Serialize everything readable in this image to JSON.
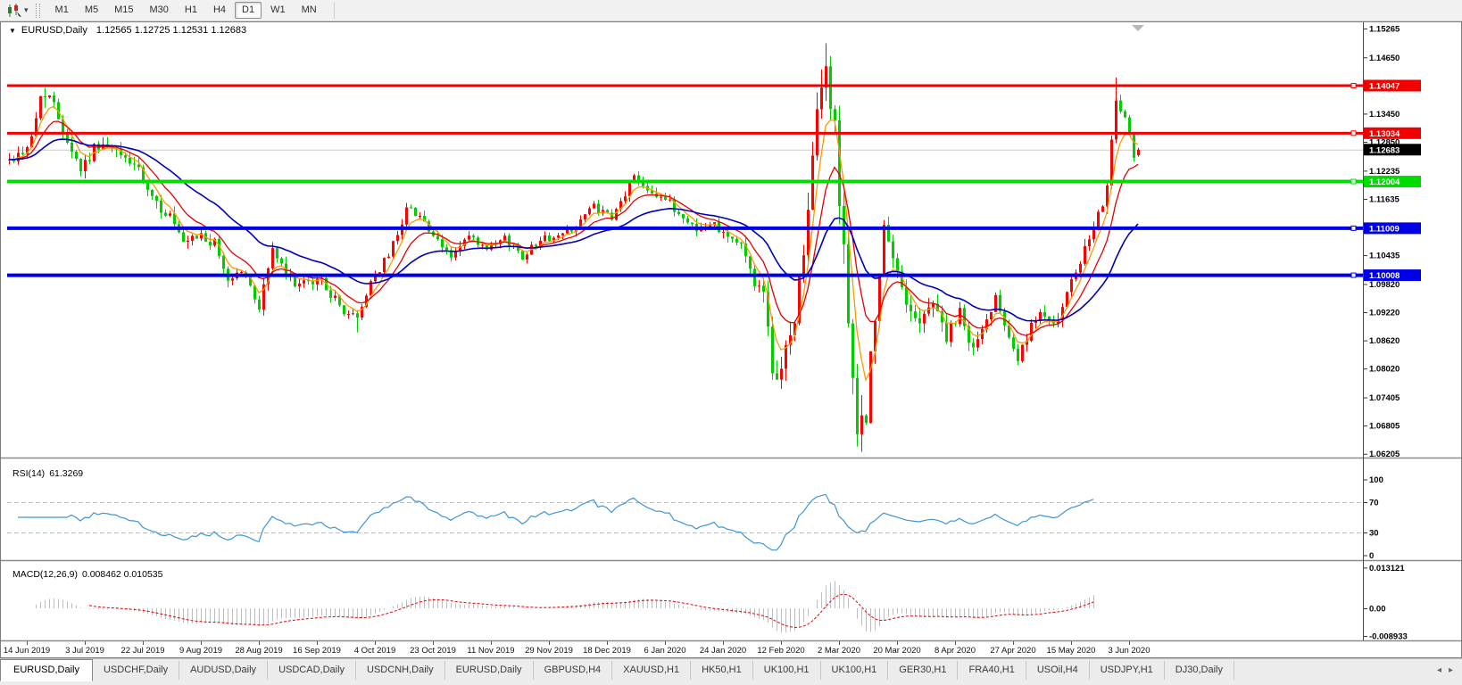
{
  "toolbar": {
    "chart_icon": "candlestick-chart-icon",
    "dropdown_caret": "▾",
    "timeframes": [
      "M1",
      "M5",
      "M15",
      "M30",
      "H1",
      "H4",
      "D1",
      "W1",
      "MN"
    ],
    "active_timeframe": "D1"
  },
  "chart": {
    "symbol_label": "EURUSD,Daily",
    "dropdown_glyph": "▼",
    "ohlc_text": "1.12565 1.12725 1.12531 1.12683",
    "open": "1.12565",
    "high": "1.12725",
    "low": "1.12531",
    "close": "1.12683"
  },
  "price_axis": {
    "ticks": [
      "1.15265",
      "1.14650",
      "1.13450",
      "1.12850",
      "1.12235",
      "1.11635",
      "1.10435",
      "1.09820",
      "1.09220",
      "1.08620",
      "1.08020",
      "1.07405",
      "1.06805",
      "1.06205"
    ],
    "levels": [
      {
        "label": "1.14047",
        "price": 1.14047,
        "color": "#f20000",
        "thickness": 3,
        "type": "resistance"
      },
      {
        "label": "1.13034",
        "price": 1.13034,
        "color": "#f20000",
        "thickness": 3,
        "type": "resistance"
      },
      {
        "label": "1.12004",
        "price": 1.12004,
        "color": "#00dc00",
        "thickness": 4,
        "type": "support"
      },
      {
        "label": "1.11009",
        "price": 1.11009,
        "color": "#0000e6",
        "thickness": 4,
        "type": "support"
      },
      {
        "label": "1.10008",
        "price": 1.10008,
        "color": "#0000e6",
        "thickness": 4,
        "type": "support"
      }
    ],
    "current": {
      "label": "1.12683",
      "price": 1.12683,
      "bg": "#000000",
      "line_color": "#c8c8c8"
    }
  },
  "date_axis": {
    "labels": [
      "14 Jun 2019",
      "3 Jul 2019",
      "22 Jul 2019",
      "9 Aug 2019",
      "28 Aug 2019",
      "16 Sep 2019",
      "4 Oct 2019",
      "23 Oct 2019",
      "11 Nov 2019",
      "29 Nov 2019",
      "18 Dec 2019",
      "6 Jan 2020",
      "24 Jan 2020",
      "12 Feb 2020",
      "2 Mar 2020",
      "20 Mar 2020",
      "8 Apr 2020",
      "27 Apr 2020",
      "15 May 2020",
      "3 Jun 2020"
    ],
    "tick_indices": [
      4,
      17,
      30,
      43,
      56,
      69,
      82,
      95,
      108,
      121,
      134,
      147,
      160,
      173,
      186,
      199,
      212,
      225,
      238,
      251
    ]
  },
  "rsi_panel": {
    "title": "RSI(14)",
    "value": "61.3269",
    "line_color": "#3d96d6",
    "guides": [
      70,
      30
    ],
    "axis_labels": [
      {
        "text": "100",
        "value": 100
      },
      {
        "text": "70",
        "value": 70
      },
      {
        "text": "30",
        "value": 30
      },
      {
        "text": "0",
        "value": 0
      }
    ]
  },
  "macd_panel": {
    "title": "MACD(12,26,9)",
    "values_text": "0.008462 0.010535",
    "macd_value": "0.008462",
    "signal_value": "0.010535",
    "histogram_color": "#bdbdbd",
    "signal_color": "#e60000",
    "axis_labels": [
      {
        "text": "0.013121",
        "value": 0.013121
      },
      {
        "text": "0.00",
        "value": 0
      },
      {
        "text": "-0.008933",
        "value": -0.008933
      }
    ]
  },
  "tabs": {
    "items": [
      "EURUSD,Daily",
      "USDCHF,Daily",
      "AUDUSD,Daily",
      "USDCAD,Daily",
      "USDCNH,Daily",
      "EURUSD,Daily",
      "GBPUSD,H4",
      "XAUUSD,H1",
      "HK50,H1",
      "UK100,H1",
      "UK100,H1",
      "GER30,H1",
      "FRA40,H1",
      "USOil,H4",
      "USDJPY,H1",
      "DJ30,Daily"
    ],
    "active_index": 0,
    "scroll_left": "◂",
    "scroll_right": "▸"
  },
  "chart_data": {
    "type": "candlestick",
    "symbol": "EURUSD",
    "timeframe": "Daily",
    "bar_count": 254,
    "bull_color": "#ff0000",
    "bear_color": "#00cc00",
    "visible_price_range": [
      1.059,
      1.154
    ],
    "seed": 42,
    "close_waypoints": [
      [
        0,
        1.1245
      ],
      [
        3,
        1.1265
      ],
      [
        5,
        1.1292
      ],
      [
        7,
        1.138
      ],
      [
        9,
        1.1383
      ],
      [
        11,
        1.1338
      ],
      [
        13,
        1.129
      ],
      [
        16,
        1.1228
      ],
      [
        20,
        1.1282
      ],
      [
        24,
        1.126
      ],
      [
        28,
        1.1238
      ],
      [
        30,
        1.1196
      ],
      [
        32,
        1.1158
      ],
      [
        36,
        1.1128
      ],
      [
        39,
        1.1062
      ],
      [
        43,
        1.1085
      ],
      [
        46,
        1.1065
      ],
      [
        49,
        1.0992
      ],
      [
        52,
        1.1012
      ],
      [
        56,
        1.0935
      ],
      [
        59,
        1.1058
      ],
      [
        62,
        1.0998
      ],
      [
        66,
        1.0978
      ],
      [
        70,
        1.0992
      ],
      [
        74,
        1.0932
      ],
      [
        78,
        1.0907
      ],
      [
        81,
        1.0988
      ],
      [
        85,
        1.1042
      ],
      [
        89,
        1.1142
      ],
      [
        92,
        1.1132
      ],
      [
        95,
        1.1078
      ],
      [
        99,
        1.1042
      ],
      [
        103,
        1.1082
      ],
      [
        107,
        1.1052
      ],
      [
        111,
        1.1078
      ],
      [
        115,
        1.1042
      ],
      [
        119,
        1.1078
      ],
      [
        123,
        1.1082
      ],
      [
        127,
        1.1108
      ],
      [
        131,
        1.1148
      ],
      [
        135,
        1.1118
      ],
      [
        140,
        1.1212
      ],
      [
        143,
        1.1188
      ],
      [
        147,
        1.1162
      ],
      [
        151,
        1.1122
      ],
      [
        155,
        1.1098
      ],
      [
        158,
        1.1112
      ],
      [
        161,
        1.1088
      ],
      [
        164,
        1.1062
      ],
      [
        167,
        1.0992
      ],
      [
        169,
        1.0952
      ],
      [
        171,
        1.0792
      ],
      [
        173,
        1.0802
      ],
      [
        176,
        1.0912
      ],
      [
        179,
        1.1132
      ],
      [
        181,
        1.1342
      ],
      [
        183,
        1.1446
      ],
      [
        185,
        1.1292
      ],
      [
        187,
        1.1072
      ],
      [
        189,
        1.0742
      ],
      [
        190,
        1.0662
      ],
      [
        192,
        1.0722
      ],
      [
        194,
        1.0902
      ],
      [
        196,
        1.1092
      ],
      [
        198,
        1.1032
      ],
      [
        201,
        1.0952
      ],
      [
        204,
        1.0892
      ],
      [
        207,
        1.0952
      ],
      [
        210,
        1.0867
      ],
      [
        213,
        1.0917
      ],
      [
        216,
        1.0842
      ],
      [
        219,
        1.0902
      ],
      [
        221,
        1.0962
      ],
      [
        223,
        1.0907
      ],
      [
        226,
        1.0822
      ],
      [
        229,
        1.0887
      ],
      [
        232,
        1.0922
      ],
      [
        235,
        1.0902
      ],
      [
        238,
        1.0982
      ],
      [
        241,
        1.1052
      ],
      [
        244,
        1.112
      ],
      [
        246,
        1.1205
      ],
      [
        248,
        1.1373
      ],
      [
        250,
        1.1335
      ],
      [
        251,
        1.1296
      ],
      [
        252,
        1.1243
      ],
      [
        253,
        1.1268
      ]
    ],
    "volatility_waypoints": [
      [
        0,
        0.0028
      ],
      [
        30,
        0.0032
      ],
      [
        60,
        0.0028
      ],
      [
        90,
        0.0022
      ],
      [
        120,
        0.0018
      ],
      [
        140,
        0.0022
      ],
      [
        163,
        0.0026
      ],
      [
        170,
        0.0045
      ],
      [
        178,
        0.0065
      ],
      [
        184,
        0.0085
      ],
      [
        190,
        0.0095
      ],
      [
        194,
        0.0065
      ],
      [
        198,
        0.0045
      ],
      [
        208,
        0.0038
      ],
      [
        222,
        0.0032
      ],
      [
        238,
        0.0028
      ],
      [
        246,
        0.0038
      ],
      [
        251,
        0.0025
      ],
      [
        253,
        0.0015
      ]
    ],
    "overrides": [
      {
        "i": 8,
        "h": 1.14,
        "c": 1.138
      },
      {
        "i": 78,
        "l": 1.0879
      },
      {
        "i": 171,
        "l": 1.0778,
        "c": 1.0792
      },
      {
        "i": 183,
        "h": 1.1495,
        "c": 1.1446
      },
      {
        "i": 190,
        "l": 1.0636,
        "c": 1.0662
      },
      {
        "i": 248,
        "h": 1.1422,
        "c": 1.1373
      },
      {
        "i": 253,
        "o": 1.12565,
        "h": 1.12725,
        "l": 1.12531,
        "c": 1.12683
      }
    ],
    "moving_averages": [
      {
        "period": 5,
        "color": "#ff9900"
      },
      {
        "period": 11,
        "color": "#e60000"
      },
      {
        "period": 30,
        "color": "#0000bb"
      }
    ],
    "rsi_period": 14,
    "macd_params": [
      12,
      26,
      9
    ],
    "indicator_end_index": 243
  }
}
